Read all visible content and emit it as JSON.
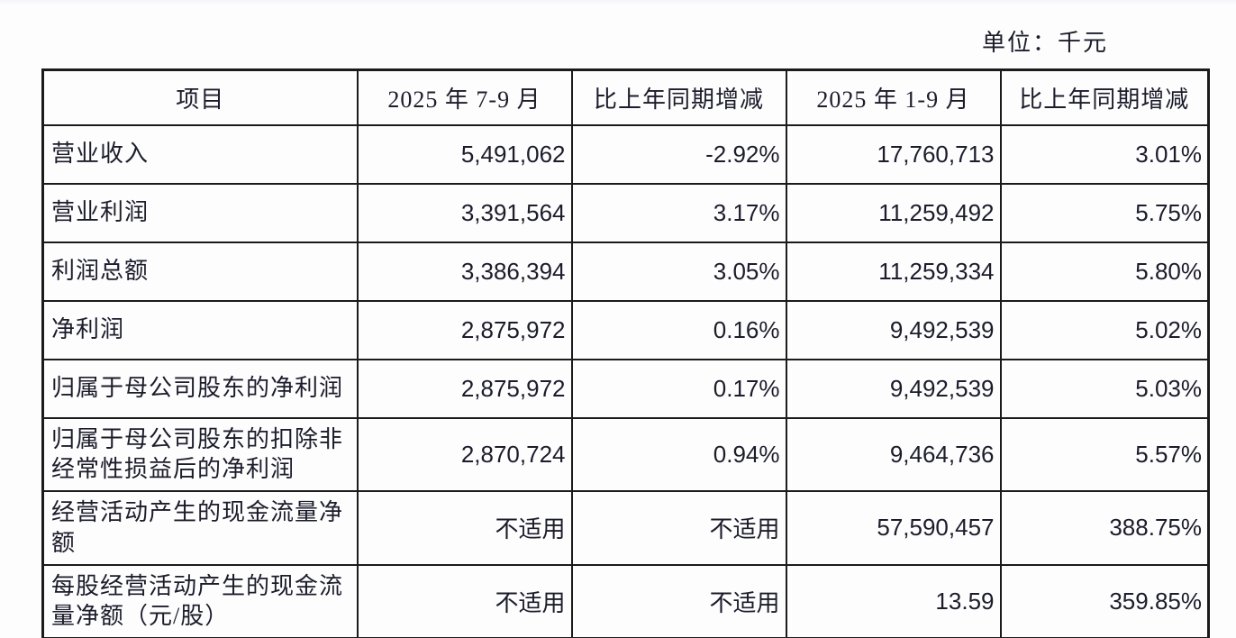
{
  "page": {
    "unit_label": "单位：千元"
  },
  "table": {
    "columns": [
      "项目",
      "2025 年 7-9 月",
      "比上年同期增减",
      "2025 年 1-9 月",
      "比上年同期增减"
    ],
    "rows": [
      [
        "营业收入",
        "5,491,062",
        "-2.92%",
        "17,760,713",
        "3.01%"
      ],
      [
        "营业利润",
        "3,391,564",
        "3.17%",
        "11,259,492",
        "5.75%"
      ],
      [
        "利润总额",
        "3,386,394",
        "3.05%",
        "11,259,334",
        "5.80%"
      ],
      [
        "净利润",
        "2,875,972",
        "0.16%",
        "9,492,539",
        "5.02%"
      ],
      [
        "归属于母公司股东的净利润",
        "2,875,972",
        "0.17%",
        "9,492,539",
        "5.03%"
      ],
      [
        "归属于母公司股东的扣除非经常性损益后的净利润",
        "2,870,724",
        "0.94%",
        "9,464,736",
        "5.57%"
      ],
      [
        "经营活动产生的现金流量净额",
        "不适用",
        "不适用",
        "57,590,457",
        "388.75%"
      ],
      [
        "每股经营活动产生的现金流量净额（元/股）",
        "不适用",
        "不适用",
        "13.59",
        "359.85%"
      ]
    ]
  },
  "chart_data": {
    "type": "table",
    "title": "单位：千元",
    "columns": [
      "项目",
      "2025 年 7-9 月",
      "比上年同期增减",
      "2025 年 1-9 月",
      "比上年同期增减"
    ],
    "rows": [
      [
        "营业收入",
        "5,491,062",
        "-2.92%",
        "17,760,713",
        "3.01%"
      ],
      [
        "营业利润",
        "3,391,564",
        "3.17%",
        "11,259,492",
        "5.75%"
      ],
      [
        "利润总额",
        "3,386,394",
        "3.05%",
        "11,259,334",
        "5.80%"
      ],
      [
        "净利润",
        "2,875,972",
        "0.16%",
        "9,492,539",
        "5.02%"
      ],
      [
        "归属于母公司股东的净利润",
        "2,875,972",
        "0.17%",
        "9,492,539",
        "5.03%"
      ],
      [
        "归属于母公司股东的扣除非经常性损益后的净利润",
        "2,870,724",
        "0.94%",
        "9,464,736",
        "5.57%"
      ],
      [
        "经营活动产生的现金流量净额",
        "不适用",
        "不适用",
        "57,590,457",
        "388.75%"
      ],
      [
        "每股经营活动产生的现金流量净额（元/股）",
        "不适用",
        "不适用",
        "13.59",
        "359.85%"
      ]
    ]
  }
}
